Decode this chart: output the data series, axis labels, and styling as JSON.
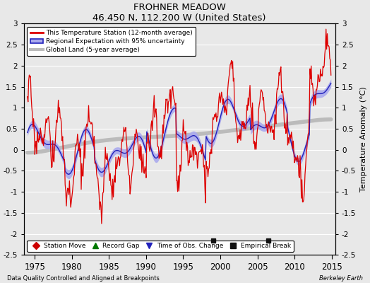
{
  "title": "FROHNER MEADOW",
  "subtitle": "46.450 N, 112.200 W (United States)",
  "ylabel": "Temperature Anomaly (°C)",
  "xlabel_left": "Data Quality Controlled and Aligned at Breakpoints",
  "xlabel_right": "Berkeley Earth",
  "ylim": [
    -2.5,
    3.0
  ],
  "xlim": [
    1973.5,
    2015.5
  ],
  "yticks": [
    -2.5,
    -2,
    -1.5,
    -1,
    -0.5,
    0,
    0.5,
    1,
    1.5,
    2,
    2.5,
    3
  ],
  "ytick_labels": [
    "-2.5",
    "-2",
    "-1.5",
    "-1",
    "-0.5",
    "0",
    "0.5",
    "1",
    "1.5",
    "2",
    "2.5",
    "3"
  ],
  "xticks": [
    1975,
    1980,
    1985,
    1990,
    1995,
    2000,
    2005,
    2010,
    2015
  ],
  "bg_color": "#e8e8e8",
  "plot_bg_color": "#e8e8e8",
  "grid_color": "#ffffff",
  "station_color": "#dd0000",
  "regional_color": "#2222bb",
  "regional_fill_color": "#aaaaee",
  "global_color": "#bbbbbb",
  "legend_items": [
    "This Temperature Station (12-month average)",
    "Regional Expectation with 95% uncertainty",
    "Global Land (5-year average)"
  ],
  "marker_items": [
    {
      "label": "Station Move",
      "color": "#cc0000",
      "marker": "D"
    },
    {
      "label": "Record Gap",
      "color": "#007700",
      "marker": "^"
    },
    {
      "label": "Time of Obs. Change",
      "color": "#2222bb",
      "marker": "v"
    },
    {
      "label": "Empirical Break",
      "color": "#111111",
      "marker": "s"
    }
  ],
  "empirical_breaks": [
    1999.0,
    2006.5
  ]
}
